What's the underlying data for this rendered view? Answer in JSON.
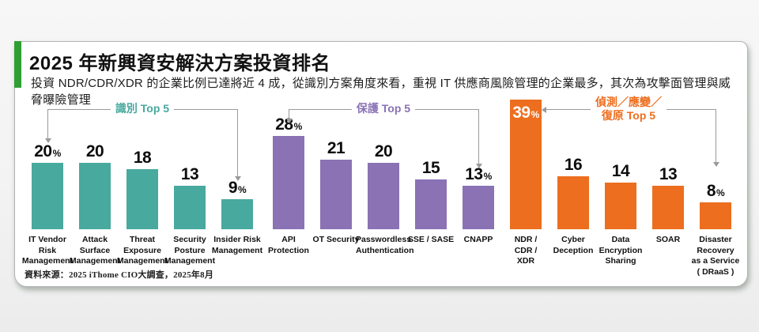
{
  "header": {
    "title": "2025 年新興資安解決方案投資排名",
    "subtitle": "投資 NDR/CDR/XDR 的企業比例已達將近 4 成，從識別方案角度來看，重視 IT 供應商風險管理的企業最多，其次為攻擊面管理與威脅曝險管理",
    "accent_color": "#2f9e33"
  },
  "footer": {
    "source": "資料來源：2025 iThome CIO大調查，2025年8月"
  },
  "chart_data": {
    "type": "bar",
    "unit": "%",
    "ylim": [
      0,
      40
    ],
    "grid": false,
    "legend": "none",
    "groups": [
      {
        "title": "識別 Top 5",
        "color": "#48a99e",
        "categories": [
          "IT Vendor Risk\nManagement",
          "Attack\nSurface\nManagement",
          "Threat\nExposure\nManagement",
          "Security\nPosture\nManagement",
          "Insider Risk\nManagement"
        ],
        "values": [
          20,
          20,
          18,
          13,
          9
        ],
        "pct": [
          1,
          0,
          0,
          0,
          1
        ],
        "inside": [
          0,
          0,
          0,
          0,
          0
        ]
      },
      {
        "title": "保護 Top 5",
        "color": "#8a72b5",
        "categories": [
          "API\nProtection",
          "OT Security",
          "Passwordless\nAuthentication",
          "SSE / SASE",
          "CNAPP"
        ],
        "values": [
          28,
          21,
          20,
          15,
          13
        ],
        "pct": [
          1,
          0,
          0,
          0,
          1
        ],
        "inside": [
          0,
          0,
          0,
          0,
          0
        ]
      },
      {
        "title": "偵測／應變／\n復原 Top 5",
        "color": "#ed6e1e",
        "categories": [
          "NDR /\nCDR /\nXDR",
          "Cyber\nDeception",
          "Data\nEncryption\nSharing",
          "SOAR",
          "Disaster\nRecovery\nas a Service\n( DRaaS )"
        ],
        "values": [
          39,
          16,
          14,
          13,
          8
        ],
        "pct": [
          1,
          0,
          0,
          0,
          1
        ],
        "inside": [
          1,
          0,
          0,
          0,
          0
        ]
      }
    ]
  }
}
